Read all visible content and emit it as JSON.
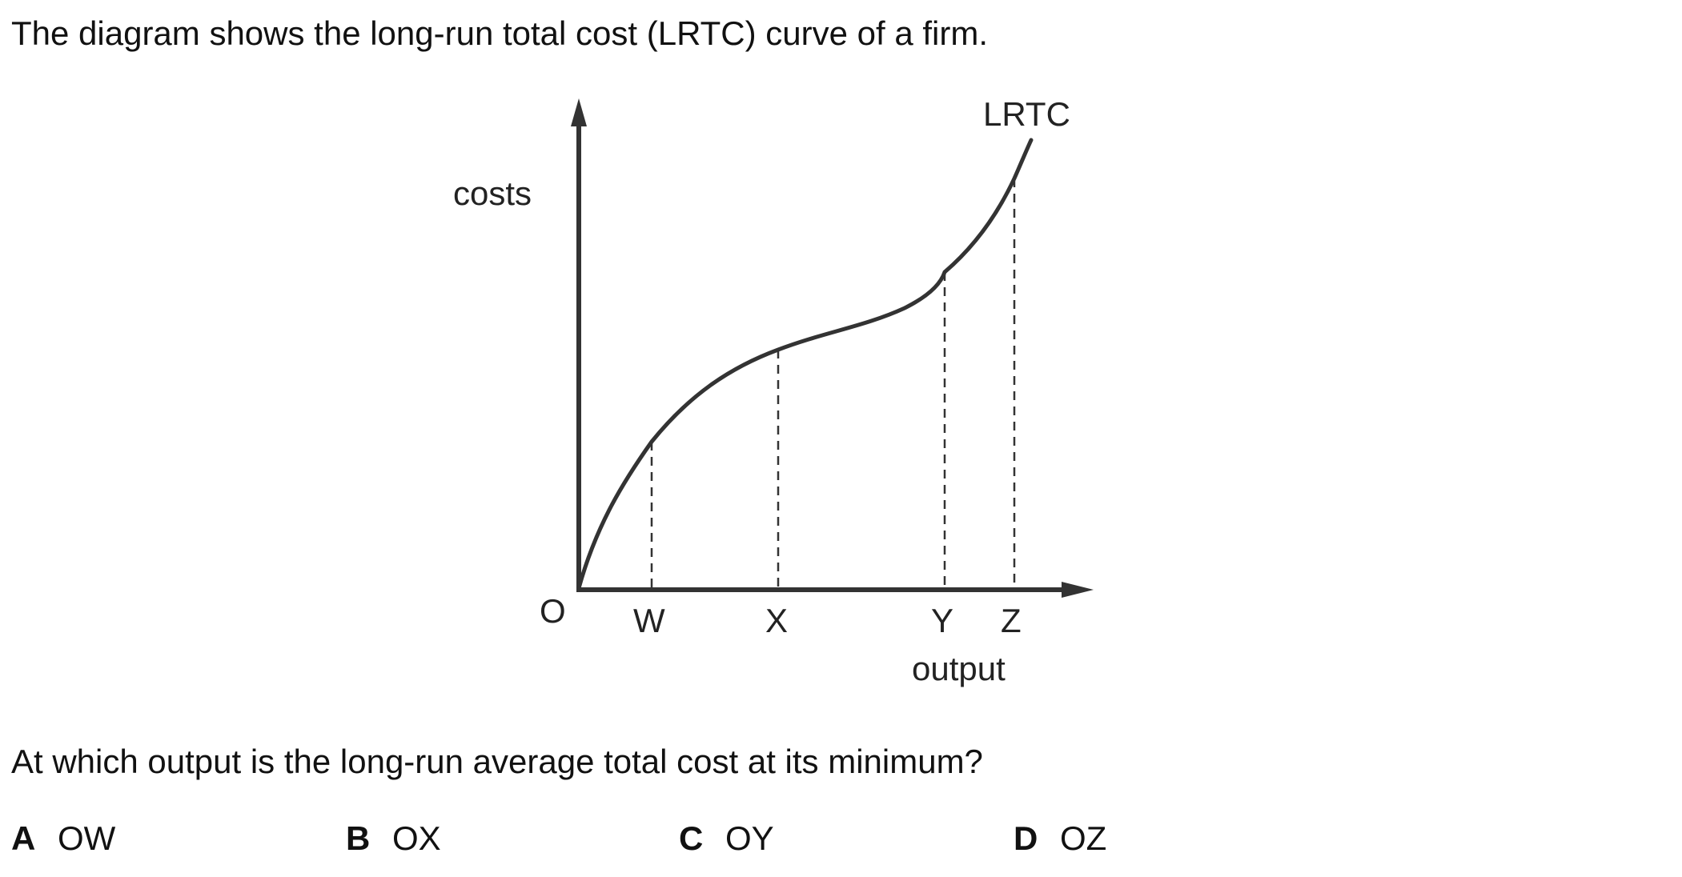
{
  "intro_text": "The diagram shows the long-run total cost (LRTC) curve of a firm.",
  "diagram": {
    "y_axis_label": "costs",
    "x_axis_label": "output",
    "origin_label": "O",
    "curve_label": "LRTC",
    "x_markers": [
      {
        "label": "W"
      },
      {
        "label": "X"
      },
      {
        "label": "Y"
      },
      {
        "label": "Z"
      }
    ]
  },
  "question_text": "At which output is the long-run average total cost at its minimum?",
  "options": [
    {
      "letter": "A",
      "text": "OW"
    },
    {
      "letter": "B",
      "text": "OX"
    },
    {
      "letter": "C",
      "text": "OY"
    },
    {
      "letter": "D",
      "text": "OZ"
    }
  ]
}
